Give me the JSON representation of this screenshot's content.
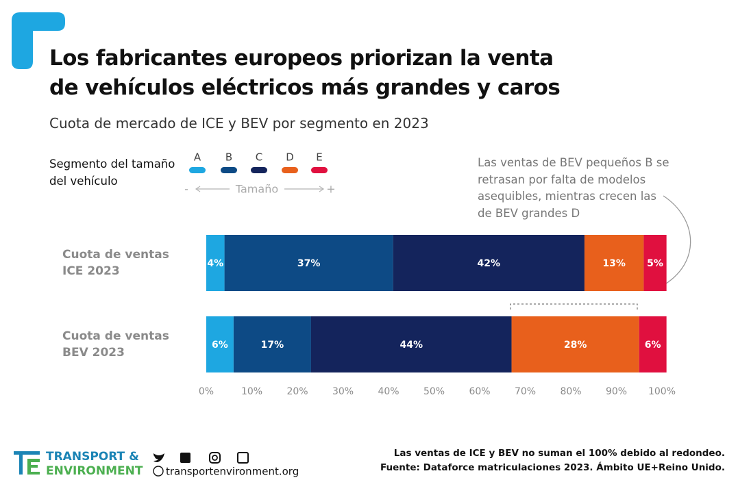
{
  "chart_data": {
    "type": "stacked-bar-horizontal",
    "title": "Los fabricantes europeos priorizan la venta de vehículos eléctricos más grandes y caros",
    "subtitle": "Cuota de mercado de ICE y BEV por segmento en 2023",
    "legend_title": "Segmento del tamaño del vehículo",
    "size_scale": {
      "low": "-",
      "label": "Tamaño",
      "high": "+"
    },
    "annotation": "Las ventas de BEV pequeños B se retrasan por falta de modelos asequibles, mientras crecen las de BEV grandes D",
    "categories": [
      "Cuota de ventas ICE 2023",
      "Cuota de ventas BEV 2023"
    ],
    "series": [
      {
        "name": "A",
        "color": "#1ea7e1",
        "values": [
          4,
          6
        ],
        "value_labels": [
          "4%",
          "6%"
        ]
      },
      {
        "name": "B",
        "color": "#0d4a85",
        "values": [
          37,
          17
        ],
        "value_labels": [
          "37%",
          "17%"
        ]
      },
      {
        "name": "C",
        "color": "#14245c",
        "values": [
          42,
          44
        ],
        "value_labels": [
          "42%",
          "44%"
        ]
      },
      {
        "name": "D",
        "color": "#e8601c",
        "values": [
          13,
          28
        ],
        "value_labels": [
          "13%",
          "28%"
        ]
      },
      {
        "name": "E",
        "color": "#e0103f",
        "values": [
          5,
          6
        ],
        "value_labels": [
          "5%",
          "6%"
        ]
      }
    ],
    "xlim": [
      0,
      100
    ],
    "xticks": [
      {
        "value": 0,
        "label": "0%"
      },
      {
        "value": 10,
        "label": "10%"
      },
      {
        "value": 20,
        "label": "20%"
      },
      {
        "value": 30,
        "label": "30%"
      },
      {
        "value": 40,
        "label": "40%"
      },
      {
        "value": 50,
        "label": "50%"
      },
      {
        "value": 60,
        "label": "60%"
      },
      {
        "value": 70,
        "label": "70%"
      },
      {
        "value": 80,
        "label": "80%"
      },
      {
        "value": 90,
        "label": "90%"
      },
      {
        "value": 100,
        "label": "100%"
      }
    ],
    "grid": false
  },
  "footer": {
    "logo_line1": "TRANSPORT &",
    "logo_line2": "ENVIRONMENT",
    "website": "transportenvironment.org",
    "note": "Las ventas de ICE y BEV no suman el 100% debido al redondeo.",
    "source": "Fuente: Dataforce matriculaciones 2023. Ámbito UE+Reino Unido."
  }
}
